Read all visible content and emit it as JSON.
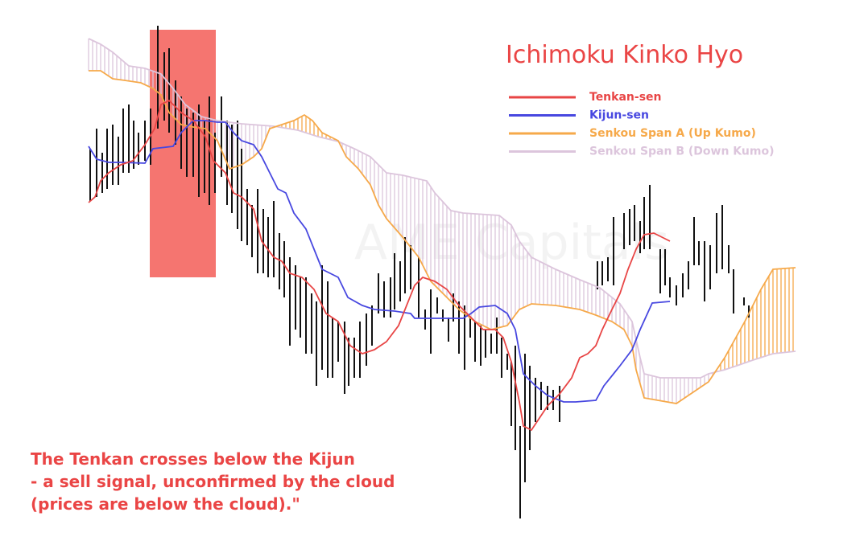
{
  "chart_data": {
    "type": "ichimoku",
    "title": "Ichimoku Kinko Hyo",
    "watermark": "AME Capitals",
    "annotation": [
      "The Tenkan crosses below the Kijun",
      "- a sell signal, unconfirmed by the cloud",
      "(prices are below the cloud).\""
    ],
    "xlim": [
      0,
      880
    ],
    "ylim": [
      0,
      620
    ],
    "series": [
      {
        "name": "Tenkan-sen",
        "color": "#e84545",
        "x": [
          0,
          8,
          15,
          25,
          40,
          55,
          70,
          82,
          90,
          100,
          115,
          130,
          145,
          155,
          170,
          180,
          190,
          205,
          215,
          230,
          240,
          250,
          265,
          280,
          295,
          310,
          325,
          340,
          355,
          370,
          385,
          395,
          405,
          415,
          430,
          445,
          460,
          475,
          490,
          505,
          515,
          525,
          535,
          540,
          550,
          560,
          570,
          585,
          600,
          610,
          620,
          630,
          638,
          650,
          660,
          670,
          680,
          690,
          702,
          712,
          722
        ],
        "values": [
          398,
          405,
          425,
          435,
          445,
          450,
          470,
          490,
          520,
          525,
          510,
          500,
          480,
          450,
          435,
          410,
          405,
          390,
          350,
          330,
          325,
          310,
          305,
          290,
          260,
          250,
          220,
          210,
          215,
          225,
          245,
          270,
          295,
          305,
          300,
          290,
          270,
          255,
          240,
          240,
          230,
          200,
          150,
          120,
          115,
          130,
          145,
          160,
          180,
          205,
          210,
          220,
          240,
          265,
          285,
          315,
          340,
          358,
          360,
          355,
          350
        ]
      },
      {
        "name": "Kijun-sen",
        "color": "#4848e0",
        "x": [
          0,
          10,
          25,
          40,
          70,
          80,
          105,
          115,
          130,
          145,
          160,
          170,
          180,
          190,
          205,
          215,
          225,
          235,
          245,
          255,
          270,
          280,
          290,
          310,
          322,
          340,
          355,
          380,
          400,
          405,
          465,
          475,
          485,
          505,
          520,
          530,
          540,
          555,
          570,
          590,
          605,
          630,
          640,
          660,
          675,
          685,
          700,
          722
        ],
        "values": [
          468,
          452,
          448,
          448,
          447,
          465,
          468,
          485,
          500,
          500,
          498,
          498,
          485,
          475,
          470,
          455,
          435,
          415,
          410,
          385,
          365,
          340,
          315,
          305,
          280,
          270,
          265,
          263,
          260,
          254,
          254,
          260,
          268,
          270,
          260,
          240,
          185,
          170,
          158,
          150,
          150,
          152,
          170,
          195,
          215,
          240,
          273,
          275
        ]
      },
      {
        "name": "Senkou Span A (Up Kumo)",
        "color": "#f6a94a",
        "x": [
          0,
          15,
          30,
          45,
          65,
          80,
          90,
          100,
          115,
          130,
          145,
          160,
          175,
          190,
          205,
          215,
          225,
          240,
          255,
          268,
          278,
          290,
          310,
          320,
          335,
          350,
          360,
          370,
          390,
          410,
          425,
          440,
          460,
          480,
          500,
          520,
          535,
          550,
          580,
          610,
          630,
          650,
          665,
          675,
          680,
          690,
          730,
          770,
          790,
          815,
          835,
          850,
          878
        ],
        "values": [
          562,
          562,
          552,
          550,
          547,
          540,
          532,
          510,
          495,
          492,
          490,
          475,
          440,
          445,
          455,
          465,
          490,
          495,
          500,
          507,
          500,
          485,
          475,
          455,
          440,
          420,
          395,
          378,
          355,
          330,
          300,
          285,
          265,
          250,
          240,
          245,
          265,
          272,
          270,
          265,
          258,
          250,
          240,
          220,
          190,
          155,
          148,
          175,
          205,
          250,
          290,
          315,
          317
        ]
      },
      {
        "name": "Senkou Span B (Down Kumo)",
        "color": "#dcc5dc",
        "x": [
          0,
          15,
          30,
          50,
          70,
          90,
          105,
          120,
          140,
          160,
          190,
          230,
          260,
          285,
          310,
          330,
          350,
          370,
          390,
          420,
          430,
          450,
          465,
          510,
          525,
          535,
          550,
          580,
          610,
          635,
          660,
          675,
          685,
          690,
          710,
          760,
          770,
          790,
          805,
          825,
          850,
          878
        ],
        "values": [
          602,
          595,
          585,
          568,
          565,
          558,
          540,
          520,
          505,
          500,
          496,
          493,
          488,
          480,
          474,
          465,
          455,
          435,
          432,
          425,
          410,
          388,
          385,
          382,
          370,
          350,
          330,
          315,
          302,
          292,
          272,
          250,
          205,
          185,
          180,
          180,
          185,
          190,
          195,
          202,
          210,
          213
        ]
      }
    ],
    "bars": {
      "color": "#111111",
      "x": [
        2,
        10,
        17,
        23,
        30,
        37,
        43,
        50,
        56,
        62,
        70,
        77,
        86,
        94,
        100,
        108,
        115,
        122,
        130,
        137,
        144,
        150,
        157,
        165,
        172,
        178,
        185,
        190,
        197,
        203,
        210,
        217,
        223,
        230,
        237,
        243,
        250,
        257,
        263,
        270,
        277,
        283,
        290,
        297,
        303,
        310,
        318,
        323,
        330,
        337,
        345,
        352,
        360,
        367,
        375,
        380,
        387,
        393,
        400,
        410,
        418,
        425,
        433,
        440,
        447,
        453,
        460,
        467,
        474,
        480,
        487,
        493,
        500,
        507,
        513,
        520,
        525,
        530,
        536,
        542,
        548,
        555,
        562,
        570,
        577,
        585,
        632,
        638,
        645,
        652,
        665,
        672,
        678,
        685,
        690,
        697,
        710,
        716,
        722,
        730,
        738,
        745,
        752,
        758,
        765,
        772,
        780,
        787,
        795,
        801,
        814,
        820
      ],
      "high": [
        465,
        490,
        460,
        490,
        495,
        480,
        515,
        520,
        500,
        485,
        500,
        515,
        618,
        585,
        590,
        550,
        530,
        515,
        510,
        520,
        500,
        530,
        485,
        530,
        500,
        495,
        500,
        465,
        415,
        395,
        415,
        390,
        380,
        400,
        360,
        350,
        330,
        320,
        305,
        305,
        285,
        275,
        320,
        300,
        255,
        250,
        250,
        230,
        230,
        250,
        260,
        270,
        310,
        300,
        305,
        335,
        325,
        355,
        345,
        330,
        265,
        290,
        280,
        265,
        255,
        285,
        275,
        270,
        255,
        250,
        245,
        240,
        235,
        255,
        230,
        210,
        200,
        220,
        120,
        210,
        195,
        180,
        175,
        170,
        165,
        170,
        325,
        325,
        330,
        380,
        385,
        390,
        395,
        375,
        405,
        420,
        340,
        340,
        305,
        295,
        310,
        325,
        380,
        350,
        350,
        345,
        385,
        395,
        345,
        315,
        280,
        270
      ],
      "low": [
        400,
        405,
        410,
        415,
        420,
        420,
        435,
        435,
        440,
        445,
        450,
        445,
        490,
        500,
        485,
        470,
        440,
        430,
        430,
        405,
        410,
        395,
        410,
        430,
        395,
        385,
        365,
        350,
        345,
        330,
        310,
        310,
        305,
        305,
        290,
        280,
        220,
        240,
        230,
        210,
        210,
        170,
        190,
        180,
        180,
        200,
        160,
        170,
        180,
        180,
        195,
        220,
        260,
        255,
        255,
        265,
        275,
        285,
        290,
        255,
        240,
        210,
        260,
        250,
        225,
        250,
        210,
        190,
        230,
        200,
        195,
        205,
        210,
        210,
        180,
        190,
        120,
        90,
        5,
        50,
        90,
        125,
        140,
        140,
        140,
        125,
        290,
        295,
        300,
        295,
        340,
        345,
        350,
        335,
        340,
        340,
        285,
        295,
        280,
        270,
        280,
        290,
        320,
        320,
        275,
        290,
        310,
        315,
        310,
        260,
        270,
        255
      ]
    }
  }
}
